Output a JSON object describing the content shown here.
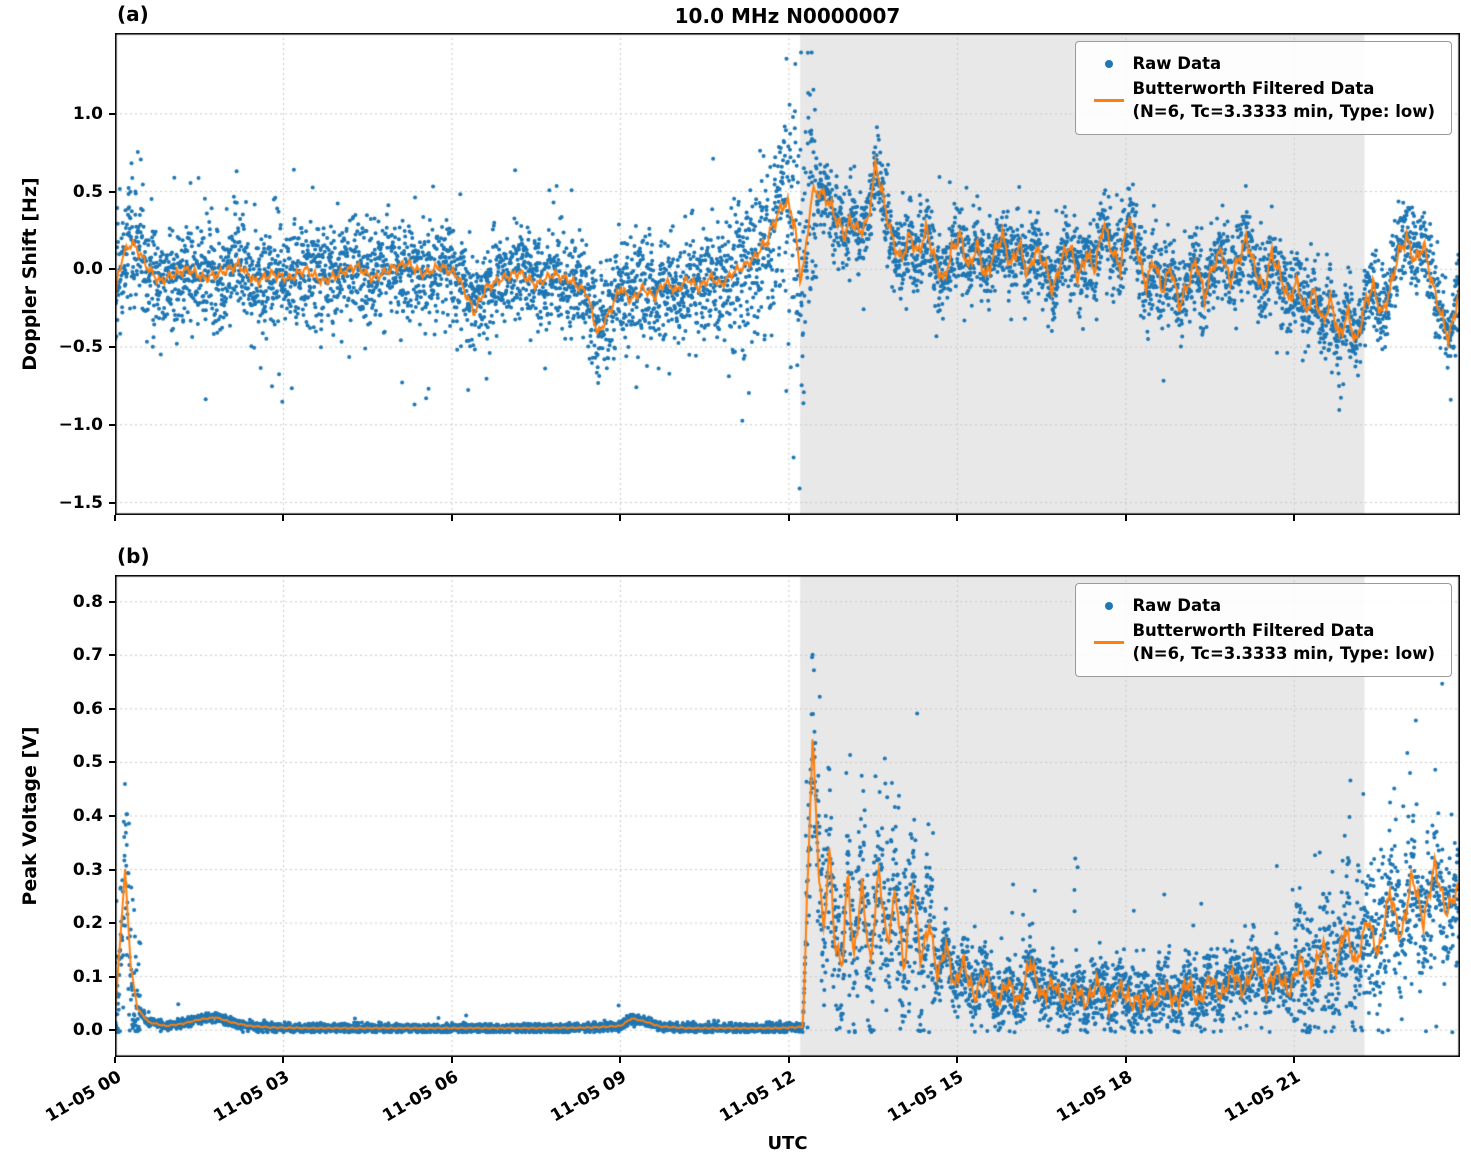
{
  "figure": {
    "title": "10.0 MHz N0000007",
    "xlabel": "UTC",
    "panel_a_label": "(a)",
    "panel_b_label": "(b)",
    "colors": {
      "raw": "#1f77b4",
      "filtered": "#ff7f0e",
      "shade": "#e8e8e8",
      "grid": "#c9c9c9",
      "frame": "#000000"
    },
    "legend": {
      "raw_label": "Raw Data",
      "filtered_label": "Butterworth Filtered Data",
      "filtered_sublabel": "(N=6, Tc=3.3333 min, Type: low)"
    }
  },
  "chart_data": [
    {
      "type": "scatter",
      "panel": "a",
      "title": "10.0 MHz N0000007",
      "ylabel": "Doppler Shift [Hz]",
      "xlim": [
        0,
        23.95
      ],
      "ylim": [
        -1.58,
        1.52
      ],
      "xtick_values": [
        0,
        3,
        6,
        9,
        12,
        15,
        18,
        21
      ],
      "xtick_labels": [
        "11-05 00",
        "11-05 03",
        "11-05 06",
        "11-05 09",
        "11-05 12",
        "11-05 15",
        "11-05 18",
        "11-05 21"
      ],
      "show_xtick_labels": false,
      "ytick_values": [
        1.0,
        0.5,
        0.0,
        -0.5,
        -1.0,
        -1.5
      ],
      "ytick_labels": [
        "1.0",
        "0.5",
        "0.0",
        "−0.5",
        "−1.0",
        "−1.5"
      ],
      "shaded_region": [
        12.2,
        22.25
      ],
      "grid": true,
      "legend_position": "upper right",
      "series": [
        {
          "name": "Raw Data",
          "type": "scatter"
        },
        {
          "name": "Butterworth Filtered Data (N=6, Tc=3.3333 min, Type: low)",
          "type": "line"
        }
      ],
      "filtered_profile": [
        [
          0,
          -0.2
        ],
        [
          0.05,
          -0.05
        ],
        [
          0.15,
          0.1
        ],
        [
          0.3,
          0.17
        ],
        [
          0.45,
          0.1
        ],
        [
          0.6,
          0.0
        ],
        [
          0.8,
          -0.08
        ],
        [
          1.0,
          -0.04
        ],
        [
          1.3,
          0.0
        ],
        [
          1.6,
          -0.06
        ],
        [
          1.9,
          -0.02
        ],
        [
          2.2,
          0.03
        ],
        [
          2.5,
          -0.08
        ],
        [
          2.8,
          -0.03
        ],
        [
          3.1,
          -0.06
        ],
        [
          3.4,
          0.0
        ],
        [
          3.7,
          -0.08
        ],
        [
          4.0,
          -0.03
        ],
        [
          4.3,
          0.02
        ],
        [
          4.6,
          -0.06
        ],
        [
          4.9,
          0.0
        ],
        [
          5.2,
          0.04
        ],
        [
          5.5,
          -0.03
        ],
        [
          5.8,
          0.02
        ],
        [
          6.1,
          -0.04
        ],
        [
          6.4,
          -0.28
        ],
        [
          6.6,
          -0.12
        ],
        [
          6.9,
          -0.06
        ],
        [
          7.2,
          -0.02
        ],
        [
          7.5,
          -0.1
        ],
        [
          7.8,
          -0.03
        ],
        [
          8.1,
          -0.07
        ],
        [
          8.4,
          -0.15
        ],
        [
          8.6,
          -0.42
        ],
        [
          8.8,
          -0.28
        ],
        [
          9.0,
          -0.12
        ],
        [
          9.2,
          -0.2
        ],
        [
          9.4,
          -0.12
        ],
        [
          9.6,
          -0.18
        ],
        [
          9.8,
          -0.08
        ],
        [
          10.0,
          -0.14
        ],
        [
          10.2,
          -0.06
        ],
        [
          10.4,
          -0.12
        ],
        [
          10.6,
          -0.05
        ],
        [
          10.8,
          -0.1
        ],
        [
          11.0,
          -0.02
        ],
        [
          11.2,
          0.02
        ],
        [
          11.4,
          0.08
        ],
        [
          11.6,
          0.18
        ],
        [
          11.8,
          0.35
        ],
        [
          11.95,
          0.44
        ],
        [
          12.1,
          0.3
        ],
        [
          12.2,
          -0.05
        ],
        [
          12.3,
          0.1
        ],
        [
          12.4,
          0.48
        ],
        [
          12.55,
          0.5
        ],
        [
          12.7,
          0.44
        ],
        [
          12.85,
          0.32
        ],
        [
          13.0,
          0.22
        ],
        [
          13.1,
          0.32
        ],
        [
          13.25,
          0.24
        ],
        [
          13.4,
          0.3
        ],
        [
          13.55,
          0.68
        ],
        [
          13.7,
          0.42
        ],
        [
          13.85,
          0.18
        ],
        [
          14.0,
          0.06
        ],
        [
          14.15,
          0.22
        ],
        [
          14.3,
          0.1
        ],
        [
          14.45,
          0.26
        ],
        [
          14.6,
          0.06
        ],
        [
          14.75,
          -0.08
        ],
        [
          14.9,
          0.12
        ],
        [
          15.05,
          0.22
        ],
        [
          15.2,
          0.0
        ],
        [
          15.35,
          0.16
        ],
        [
          15.5,
          -0.06
        ],
        [
          15.65,
          0.1
        ],
        [
          15.8,
          0.22
        ],
        [
          15.95,
          0.02
        ],
        [
          16.1,
          0.16
        ],
        [
          16.25,
          -0.04
        ],
        [
          16.4,
          0.12
        ],
        [
          16.55,
          0.04
        ],
        [
          16.7,
          -0.14
        ],
        [
          16.85,
          0.06
        ],
        [
          17.0,
          0.16
        ],
        [
          17.15,
          -0.06
        ],
        [
          17.3,
          0.1
        ],
        [
          17.45,
          0.0
        ],
        [
          17.6,
          0.3
        ],
        [
          17.75,
          0.12
        ],
        [
          17.9,
          0.02
        ],
        [
          18.05,
          0.36
        ],
        [
          18.2,
          0.12
        ],
        [
          18.35,
          -0.1
        ],
        [
          18.5,
          0.06
        ],
        [
          18.65,
          -0.14
        ],
        [
          18.8,
          0.02
        ],
        [
          18.95,
          -0.24
        ],
        [
          19.1,
          -0.1
        ],
        [
          19.25,
          0.06
        ],
        [
          19.4,
          -0.18
        ],
        [
          19.55,
          0.02
        ],
        [
          19.7,
          0.12
        ],
        [
          19.85,
          -0.08
        ],
        [
          20.0,
          0.06
        ],
        [
          20.15,
          0.2
        ],
        [
          20.3,
          0.0
        ],
        [
          20.45,
          -0.14
        ],
        [
          20.6,
          0.1
        ],
        [
          20.75,
          -0.04
        ],
        [
          20.9,
          -0.2
        ],
        [
          21.05,
          -0.08
        ],
        [
          21.2,
          -0.28
        ],
        [
          21.35,
          -0.14
        ],
        [
          21.5,
          -0.34
        ],
        [
          21.65,
          -0.2
        ],
        [
          21.8,
          -0.44
        ],
        [
          21.95,
          -0.28
        ],
        [
          22.1,
          -0.48
        ],
        [
          22.25,
          -0.24
        ],
        [
          22.4,
          -0.1
        ],
        [
          22.55,
          -0.3
        ],
        [
          22.7,
          -0.14
        ],
        [
          22.85,
          0.1
        ],
        [
          23.0,
          0.2
        ],
        [
          23.15,
          0.05
        ],
        [
          23.3,
          0.16
        ],
        [
          23.45,
          -0.08
        ],
        [
          23.6,
          -0.28
        ],
        [
          23.75,
          -0.45
        ],
        [
          23.95,
          -0.12
        ]
      ],
      "noise_segments": [
        [
          0,
          0.6,
          0.2,
          0.06,
          0.45
        ],
        [
          0.6,
          10.9,
          0.16,
          0.035,
          0.45
        ],
        [
          10.9,
          11.9,
          0.24,
          0.05,
          0.4
        ],
        [
          11.9,
          12.5,
          0.42,
          0.14,
          0.8
        ],
        [
          12.5,
          23.95,
          0.13,
          0.03,
          0.3
        ]
      ],
      "raw_clip": [
        -1.45,
        1.4
      ],
      "sample_step": 0.004,
      "seed": 7,
      "line_wiggle": {
        "amps": [
          [
            0,
            11.5,
            0.035
          ],
          [
            11.5,
            23.95,
            0.055
          ]
        ],
        "w1": 41,
        "w2": 97
      }
    },
    {
      "type": "scatter",
      "panel": "b",
      "ylabel": "Peak Voltage [V]",
      "xlabel": "UTC",
      "xlim": [
        0,
        23.95
      ],
      "ylim": [
        -0.05,
        0.85
      ],
      "xtick_values": [
        0,
        3,
        6,
        9,
        12,
        15,
        18,
        21
      ],
      "xtick_labels": [
        "11-05 00",
        "11-05 03",
        "11-05 06",
        "11-05 09",
        "11-05 12",
        "11-05 15",
        "11-05 18",
        "11-05 21"
      ],
      "show_xtick_labels": true,
      "ytick_values": [
        0.0,
        0.1,
        0.2,
        0.3,
        0.4,
        0.5,
        0.6,
        0.7,
        0.8
      ],
      "ytick_labels": [
        "0.0",
        "0.1",
        "0.2",
        "0.3",
        "0.4",
        "0.5",
        "0.6",
        "0.7",
        "0.8"
      ],
      "shaded_region": [
        12.2,
        22.25
      ],
      "grid": true,
      "legend_position": "upper right",
      "series": [
        {
          "name": "Raw Data",
          "type": "scatter"
        },
        {
          "name": "Butterworth Filtered Data (N=6, Tc=3.3333 min, Type: low)",
          "type": "line"
        }
      ],
      "filtered_profile": [
        [
          0,
          0.03
        ],
        [
          0.1,
          0.18
        ],
        [
          0.18,
          0.3
        ],
        [
          0.28,
          0.12
        ],
        [
          0.4,
          0.04
        ],
        [
          0.6,
          0.015
        ],
        [
          0.9,
          0.008
        ],
        [
          1.2,
          0.012
        ],
        [
          1.5,
          0.02
        ],
        [
          1.8,
          0.024
        ],
        [
          2.1,
          0.014
        ],
        [
          2.4,
          0.008
        ],
        [
          2.8,
          0.005
        ],
        [
          3.5,
          0.004
        ],
        [
          4.5,
          0.004
        ],
        [
          5.5,
          0.004
        ],
        [
          6.5,
          0.004
        ],
        [
          7.5,
          0.004
        ],
        [
          8.5,
          0.005
        ],
        [
          9.0,
          0.008
        ],
        [
          9.2,
          0.022
        ],
        [
          9.45,
          0.016
        ],
        [
          9.7,
          0.007
        ],
        [
          10.2,
          0.004
        ],
        [
          11.0,
          0.004
        ],
        [
          11.8,
          0.004
        ],
        [
          12.25,
          0.006
        ],
        [
          12.42,
          0.55
        ],
        [
          12.52,
          0.32
        ],
        [
          12.62,
          0.18
        ],
        [
          12.72,
          0.34
        ],
        [
          12.82,
          0.16
        ],
        [
          12.95,
          0.12
        ],
        [
          13.05,
          0.3
        ],
        [
          13.15,
          0.13
        ],
        [
          13.3,
          0.27
        ],
        [
          13.45,
          0.12
        ],
        [
          13.6,
          0.3
        ],
        [
          13.75,
          0.16
        ],
        [
          13.9,
          0.26
        ],
        [
          14.05,
          0.11
        ],
        [
          14.2,
          0.28
        ],
        [
          14.35,
          0.13
        ],
        [
          14.5,
          0.2
        ],
        [
          14.65,
          0.1
        ],
        [
          14.8,
          0.16
        ],
        [
          14.95,
          0.08
        ],
        [
          15.1,
          0.13
        ],
        [
          15.3,
          0.06
        ],
        [
          15.5,
          0.11
        ],
        [
          15.7,
          0.05
        ],
        [
          15.9,
          0.09
        ],
        [
          16.1,
          0.05
        ],
        [
          16.3,
          0.13
        ],
        [
          16.5,
          0.06
        ],
        [
          16.7,
          0.09
        ],
        [
          16.9,
          0.05
        ],
        [
          17.1,
          0.08
        ],
        [
          17.3,
          0.05
        ],
        [
          17.5,
          0.09
        ],
        [
          17.7,
          0.05
        ],
        [
          17.9,
          0.08
        ],
        [
          18.1,
          0.05
        ],
        [
          18.3,
          0.06
        ],
        [
          18.5,
          0.05
        ],
        [
          18.7,
          0.08
        ],
        [
          18.9,
          0.05
        ],
        [
          19.1,
          0.09
        ],
        [
          19.3,
          0.05
        ],
        [
          19.5,
          0.1
        ],
        [
          19.7,
          0.06
        ],
        [
          19.9,
          0.11
        ],
        [
          20.1,
          0.07
        ],
        [
          20.3,
          0.13
        ],
        [
          20.5,
          0.08
        ],
        [
          20.7,
          0.11
        ],
        [
          20.9,
          0.07
        ],
        [
          21.1,
          0.13
        ],
        [
          21.3,
          0.09
        ],
        [
          21.5,
          0.16
        ],
        [
          21.7,
          0.1
        ],
        [
          21.9,
          0.19
        ],
        [
          22.1,
          0.12
        ],
        [
          22.3,
          0.21
        ],
        [
          22.5,
          0.14
        ],
        [
          22.7,
          0.26
        ],
        [
          22.9,
          0.17
        ],
        [
          23.1,
          0.29
        ],
        [
          23.3,
          0.2
        ],
        [
          23.5,
          0.31
        ],
        [
          23.7,
          0.22
        ],
        [
          23.95,
          0.27
        ]
      ],
      "noise_segments": [
        [
          0,
          0.45,
          0.09,
          0.06,
          0.18
        ],
        [
          0.45,
          12.3,
          0.0045,
          0.01,
          0.02
        ],
        [
          12.3,
          14.6,
          0.085,
          0.06,
          0.22
        ],
        [
          14.6,
          21.0,
          0.032,
          0.03,
          0.12
        ],
        [
          21.0,
          23.95,
          0.07,
          0.06,
          0.2
        ]
      ],
      "raw_clip": [
        -0.004,
        0.81
      ],
      "sample_step": 0.004,
      "seed": 11,
      "line_wiggle": {
        "amps": [
          [
            0,
            12.3,
            0.0015
          ],
          [
            12.3,
            23.95,
            0.018
          ]
        ],
        "w1": 45,
        "w2": 101
      }
    }
  ]
}
